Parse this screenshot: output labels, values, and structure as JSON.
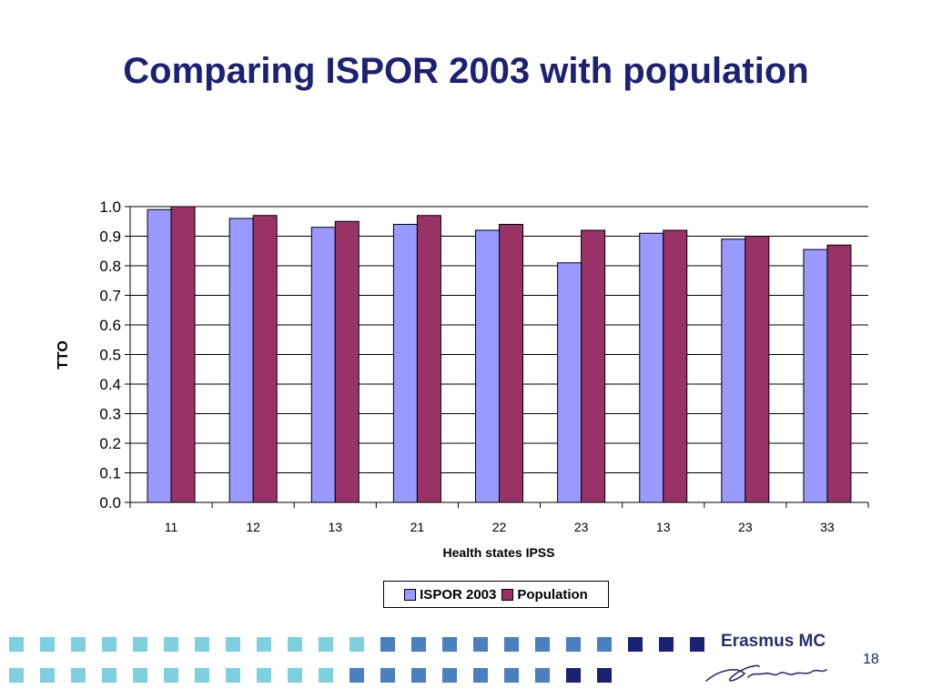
{
  "slide": {
    "title": "Comparing ISPOR 2003 with population",
    "page_number": "18",
    "logo_text": "Erasmus MC"
  },
  "colors": {
    "title": "#1c2173",
    "series_ispor": "#9999ff",
    "series_population": "#993366",
    "footer_light": "#7ecfe0",
    "footer_mid": "#4a7fc0",
    "footer_dark": "#1c2173"
  },
  "chart_data": {
    "type": "bar",
    "xlabel": "Health states IPSS",
    "ylabel": "TTO",
    "ylim": [
      0,
      1.0
    ],
    "yticks": [
      "0.0",
      "0.1",
      "0.2",
      "0.3",
      "0.4",
      "0.5",
      "0.6",
      "0.7",
      "0.8",
      "0.9",
      "1.0"
    ],
    "grid": true,
    "legend_position": "bottom",
    "categories": [
      "11",
      "12",
      "13",
      "21",
      "22",
      "23",
      "13",
      "23",
      "33"
    ],
    "series": [
      {
        "name": "ISPOR 2003",
        "values": [
          0.99,
          0.96,
          0.93,
          0.94,
          0.92,
          0.81,
          0.91,
          0.89,
          0.855
        ]
      },
      {
        "name": "Population",
        "values": [
          1.0,
          0.97,
          0.95,
          0.97,
          0.94,
          0.92,
          0.92,
          0.9,
          0.87
        ]
      }
    ]
  }
}
